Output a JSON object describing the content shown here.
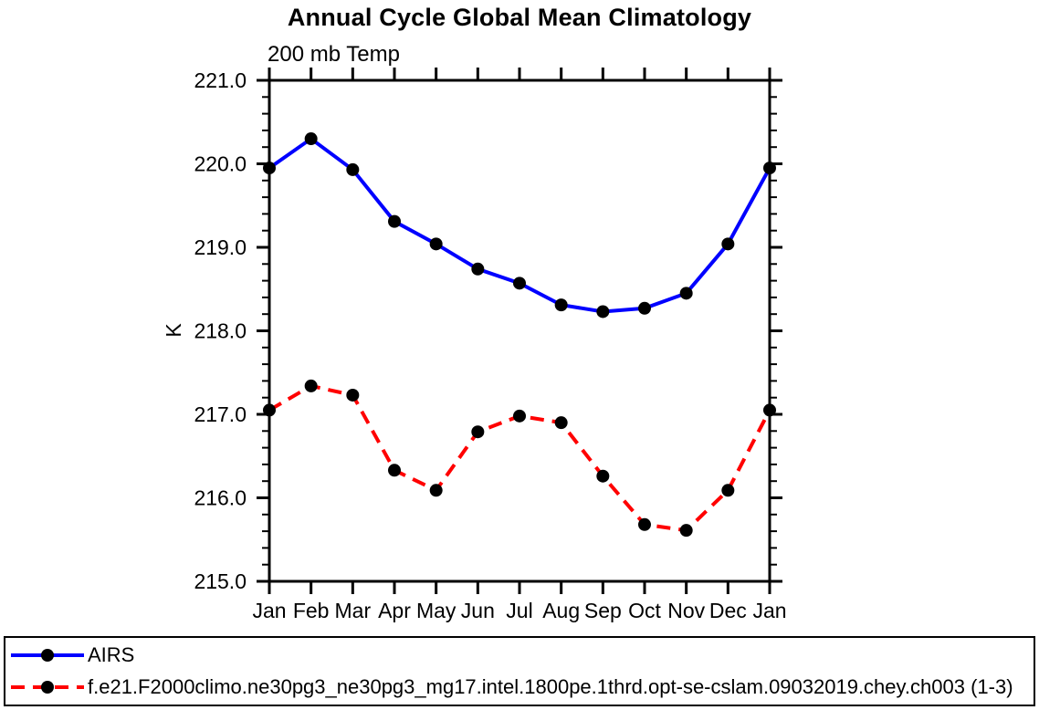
{
  "page": {
    "background": "#ffffff",
    "text_color": "#000000"
  },
  "chart_data": {
    "type": "line",
    "title": "Annual Cycle Global Mean Climatology",
    "subtitle": "200 mb Temp",
    "xlabel": "",
    "ylabel": "K",
    "categories": [
      "Jan",
      "Feb",
      "Mar",
      "Apr",
      "May",
      "Jun",
      "Jul",
      "Aug",
      "Sep",
      "Oct",
      "Nov",
      "Dec",
      "Jan"
    ],
    "ylim": [
      215.0,
      221.0
    ],
    "ytick_interval": 1.0,
    "yminor_interval": 0.2,
    "ytick_labels": [
      "215.0",
      "216.0",
      "217.0",
      "218.0",
      "219.0",
      "220.0",
      "221.0"
    ],
    "grid": false,
    "legend_position": "bottom",
    "frame_color": "#000000",
    "marker_radius": 7,
    "series": [
      {
        "name": "AIRS",
        "color": "#0000ff",
        "style": "solid",
        "marker": "circle",
        "marker_color": "#000000",
        "values": [
          219.95,
          220.3,
          219.93,
          219.31,
          219.04,
          218.74,
          218.57,
          218.31,
          218.23,
          218.27,
          218.45,
          219.04,
          219.95
        ]
      },
      {
        "name": "f.e21.F2000climo.ne30pg3_ne30pg3_mg17.intel.1800pe.1thrd.opt-se-cslam.09032019.chey.ch003 (1-3)",
        "color": "#ff0000",
        "style": "dashed",
        "marker": "circle",
        "marker_color": "#000000",
        "values": [
          217.05,
          217.34,
          217.23,
          216.33,
          216.09,
          216.79,
          216.98,
          216.9,
          216.26,
          215.68,
          215.61,
          216.09,
          217.05
        ]
      }
    ]
  }
}
